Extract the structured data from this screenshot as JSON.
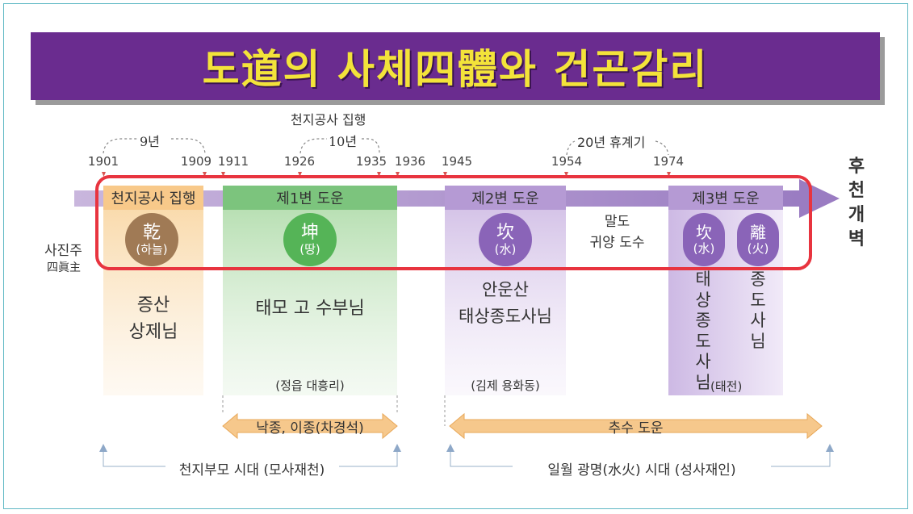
{
  "title": "도道의 사체四體와 건곤감리",
  "years": [
    "1901",
    "1909",
    "1911",
    "1926",
    "1935",
    "1936",
    "1945",
    "1954",
    "1974"
  ],
  "spans": {
    "nine_years": "9년",
    "ten_years": "10년",
    "top_label": "천지공사 집행",
    "twenty_years": "20년 휴계기"
  },
  "left_label": {
    "ko": "사진주",
    "han": "四眞主"
  },
  "end_label": "후천개벽",
  "columns": {
    "c1": {
      "header": "천지공사 집행",
      "hanja": "乾",
      "sub": "(하늘)",
      "person": [
        "증산",
        "상제님"
      ]
    },
    "c2": {
      "header": "제1변 도운",
      "hanja": "坤",
      "sub": "(땅)",
      "person": "태모 고 수부님",
      "place": "(정읍 대흥리)"
    },
    "c3": {
      "header": "제2변 도운",
      "hanja": "坎",
      "sub": "(水)",
      "person": [
        "안운산",
        "태상종도사님"
      ],
      "place": "(김제 용화동)"
    },
    "c4": {
      "header": "말도",
      "sub": "귀양 도수"
    },
    "c5": {
      "header": "제3변 도운",
      "hanja1": "坎",
      "sub1": "(水)",
      "hanja2": "離",
      "sub2": "(火)",
      "person1": "태상종도사님",
      "person2": "종도사님",
      "place": "(태전)"
    }
  },
  "bands": {
    "left": "낙종, 이종(차경석)",
    "right": "추수 도운"
  },
  "eras": {
    "left": "천지부모 시대 (모사재천)",
    "right": "일월 광명(水火) 시대 (성사재인)"
  },
  "colors": {
    "banner": "#6a2c8f",
    "title": "#f3e33a",
    "arrow": "#a98dcb",
    "orange": "#f8d39b",
    "green": "#86c985",
    "purple": "#b59ad4",
    "brown_circle": "#a07a55",
    "green_circle": "#55b457",
    "purple_circle": "#8a64b8",
    "highlight": "#e8343f"
  }
}
